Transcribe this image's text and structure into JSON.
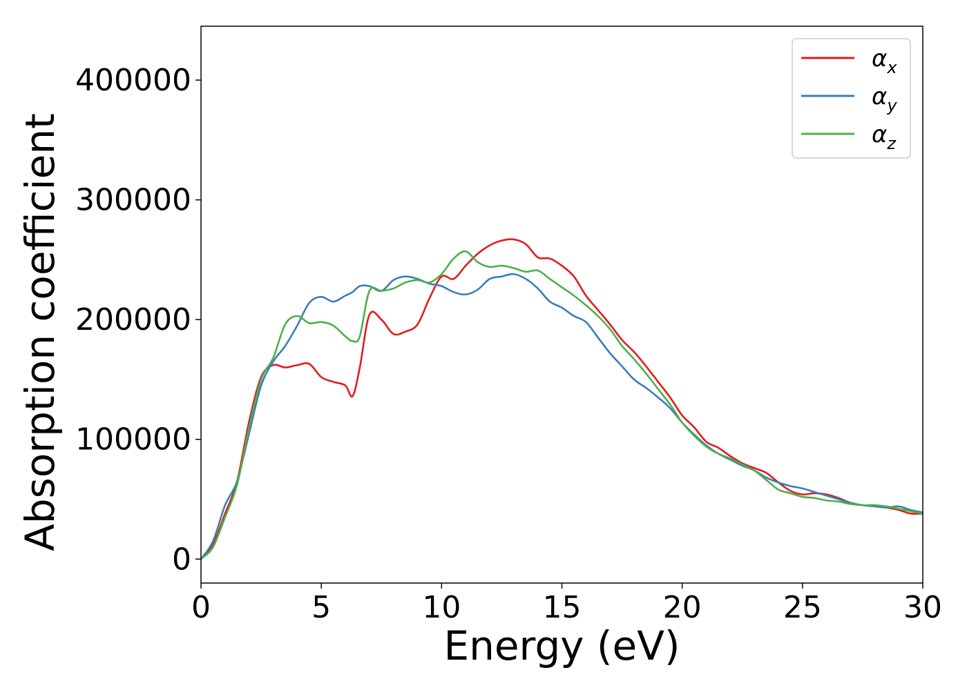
{
  "chart_data": {
    "type": "line",
    "xlabel": "Energy (eV)",
    "ylabel": "Absorption coefficient",
    "xlim": [
      0,
      30
    ],
    "ylim": [
      -20000,
      445000
    ],
    "xticks": [
      0,
      5,
      10,
      15,
      20,
      25,
      30
    ],
    "yticks": [
      0,
      100000,
      200000,
      300000,
      400000
    ],
    "grid": false,
    "legend_position": "top-right",
    "x": [
      0,
      0.5,
      1,
      1.5,
      2,
      2.5,
      3,
      3.5,
      4,
      4.5,
      5,
      5.5,
      6,
      6.3,
      6.6,
      7,
      7.5,
      8,
      8.5,
      9,
      9.5,
      10,
      10.5,
      11,
      11.5,
      12,
      12.5,
      13,
      13.5,
      14,
      14.5,
      15,
      15.5,
      16,
      16.5,
      17,
      17.5,
      18,
      18.5,
      19,
      19.5,
      20,
      20.5,
      21,
      21.5,
      22,
      22.5,
      23,
      23.5,
      24,
      24.5,
      25,
      25.5,
      26,
      26.5,
      27,
      27.5,
      28,
      28.5,
      29,
      29.5,
      30
    ],
    "series": [
      {
        "name": "α",
        "subscript": "x",
        "color": "#e41a1c",
        "values": [
          0,
          12000,
          38000,
          65000,
          115000,
          152000,
          162000,
          160000,
          162000,
          163000,
          152000,
          148000,
          145000,
          136000,
          160000,
          204000,
          200000,
          188000,
          190000,
          196000,
          218000,
          236000,
          234000,
          245000,
          255000,
          262000,
          266000,
          267000,
          263000,
          252000,
          251000,
          245000,
          236000,
          220000,
          208000,
          196000,
          183000,
          173000,
          161000,
          148000,
          135000,
          120000,
          110000,
          98000,
          93000,
          86000,
          80000,
          76000,
          72000,
          64000,
          57000,
          54000,
          55000,
          54000,
          51000,
          47000,
          45000,
          45000,
          43000,
          41000,
          38000,
          38000
        ]
      },
      {
        "name": "α",
        "subscript": "y",
        "color": "#377eb8",
        "values": [
          0,
          15000,
          45000,
          65000,
          105000,
          145000,
          165000,
          178000,
          195000,
          214000,
          219000,
          215000,
          220000,
          223000,
          228000,
          228000,
          224000,
          233000,
          236000,
          234000,
          230000,
          228000,
          223000,
          221000,
          225000,
          234000,
          236000,
          238000,
          234000,
          226000,
          215000,
          210000,
          203000,
          198000,
          185000,
          172000,
          161000,
          150000,
          143000,
          135000,
          126000,
          114000,
          104000,
          95000,
          88000,
          83000,
          78000,
          74000,
          68000,
          64000,
          61000,
          59000,
          56000,
          53000,
          50000,
          47000,
          45000,
          44000,
          43000,
          44000,
          41000,
          39000
        ]
      },
      {
        "name": "α",
        "subscript": "z",
        "color": "#4daf4a",
        "values": [
          0,
          10000,
          35000,
          62000,
          110000,
          150000,
          168000,
          196000,
          203000,
          197000,
          198000,
          195000,
          186000,
          182000,
          186000,
          224000,
          224000,
          226000,
          231000,
          233000,
          231000,
          238000,
          251000,
          257000,
          248000,
          244000,
          245000,
          243000,
          240000,
          241000,
          234000,
          227000,
          220000,
          212000,
          203000,
          192000,
          178000,
          167000,
          155000,
          142000,
          129000,
          114000,
          103000,
          94000,
          88000,
          84000,
          79000,
          74000,
          66000,
          58000,
          55000,
          52000,
          51000,
          49000,
          48000,
          46000,
          45000,
          45000,
          44000,
          42000,
          40000,
          38000
        ]
      }
    ]
  },
  "legend": [
    {
      "symbol": "α",
      "subscript": "x"
    },
    {
      "symbol": "α",
      "subscript": "y"
    },
    {
      "symbol": "α",
      "subscript": "z"
    }
  ],
  "colors": {
    "axes": "#000000",
    "legend_border": "#cccccc",
    "background": "#ffffff"
  }
}
